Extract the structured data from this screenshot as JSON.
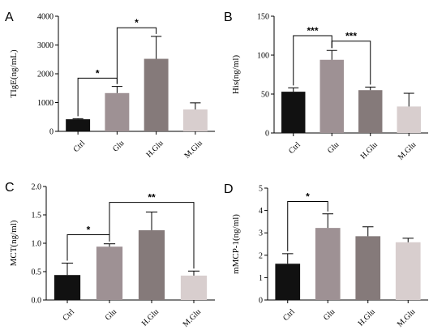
{
  "chart_data": [
    {
      "type": "bar",
      "panel_label": "A",
      "categories": [
        "Ctrl",
        "Glu",
        "H.Glu",
        "M.Glu"
      ],
      "values": [
        420,
        1330,
        2520,
        760
      ],
      "errors": [
        20,
        230,
        780,
        230
      ],
      "colors": [
        "#111111",
        "#9e9194",
        "#857a7a",
        "#d8cece"
      ],
      "ylabel": "TIgE(ng/mL)",
      "ylim": [
        0,
        4000
      ],
      "yticks": [
        0,
        1000,
        2000,
        3000,
        4000
      ],
      "significance": [
        {
          "from": 0,
          "to": 1,
          "level": 1850,
          "label": "*"
        },
        {
          "from": 1,
          "to": 2,
          "level": 3600,
          "label": "*"
        }
      ]
    },
    {
      "type": "bar",
      "panel_label": "B",
      "categories": [
        "Ctrl",
        "Glu",
        "H.Glu",
        "M.Glu"
      ],
      "values": [
        53,
        94,
        55,
        34
      ],
      "errors": [
        5,
        12,
        4,
        17
      ],
      "colors": [
        "#111111",
        "#9e9194",
        "#857a7a",
        "#d8cece"
      ],
      "ylabel": "His(ng/ml)",
      "ylim": [
        0,
        150
      ],
      "yticks": [
        0,
        50,
        100,
        150
      ],
      "significance": [
        {
          "from": 0,
          "to": 1,
          "level": 125,
          "label": "***"
        },
        {
          "from": 1,
          "to": 2,
          "level": 118,
          "label": "***"
        }
      ]
    },
    {
      "type": "bar",
      "panel_label": "C",
      "categories": [
        "Ctrl",
        "Glu",
        "H.Glu",
        "M.Glu"
      ],
      "values": [
        0.44,
        0.94,
        1.23,
        0.43
      ],
      "errors": [
        0.21,
        0.05,
        0.32,
        0.08
      ],
      "colors": [
        "#111111",
        "#9e9194",
        "#857a7a",
        "#d8cece"
      ],
      "ylabel": "MCT(ng/ml)",
      "ylim": [
        0,
        2.0
      ],
      "yticks": [
        "0.0",
        "0.5",
        "1.0",
        "1.5",
        "2.0"
      ],
      "significance": [
        {
          "from": 0,
          "to": 1,
          "level": 1.15,
          "label": "*"
        },
        {
          "from": 1,
          "to": 3,
          "level": 1.72,
          "label": "**"
        }
      ]
    },
    {
      "type": "bar",
      "panel_label": "D",
      "categories": [
        "Ctrl",
        "Glu",
        "H.Glu",
        "M.Glu"
      ],
      "values": [
        1.62,
        3.22,
        2.85,
        2.58
      ],
      "errors": [
        0.45,
        0.63,
        0.42,
        0.18
      ],
      "colors": [
        "#111111",
        "#9e9194",
        "#857a7a",
        "#d8cece"
      ],
      "ylabel": "mMCP-1(ng/ml)",
      "ylim": [
        0,
        5
      ],
      "yticks": [
        0,
        1,
        2,
        3,
        4,
        5
      ],
      "significance": [
        {
          "from": 0,
          "to": 1,
          "level": 4.4,
          "label": "*"
        }
      ]
    }
  ]
}
